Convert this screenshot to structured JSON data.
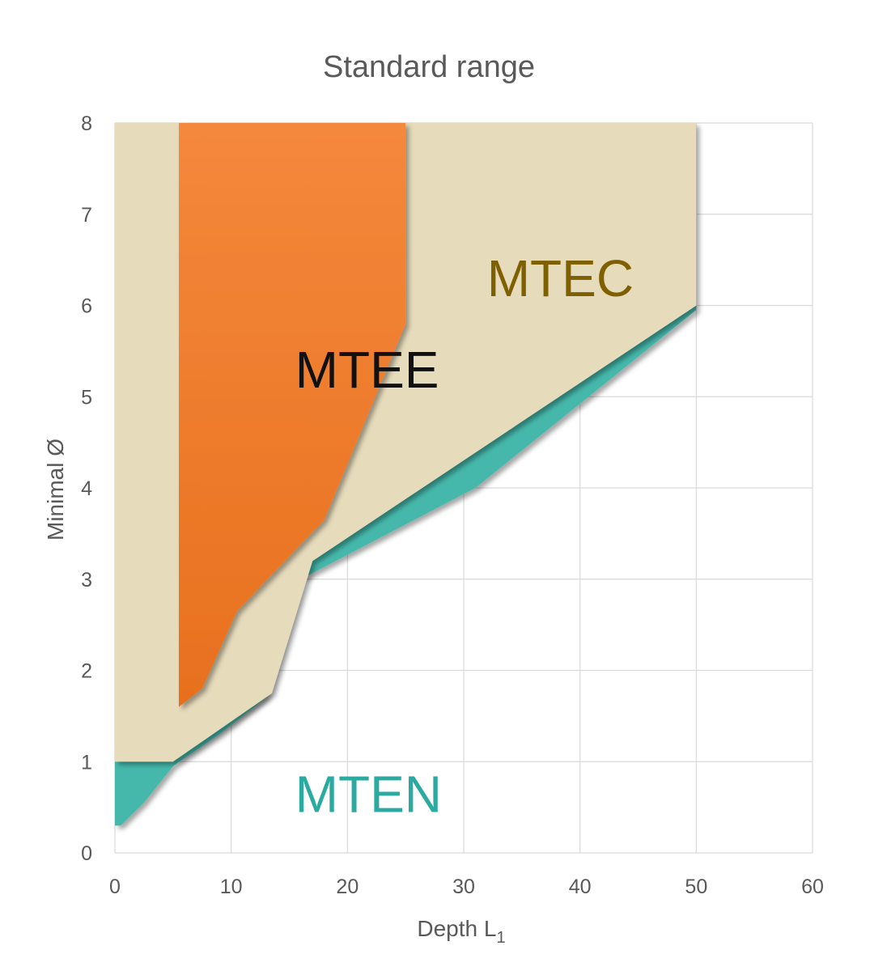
{
  "chart_data": {
    "type": "area",
    "title": "Standard range",
    "xlabel": "Depth L",
    "xlabel_sub": "1",
    "ylabel": "Minimal Ø",
    "xlim": [
      0,
      60
    ],
    "ylim": [
      0,
      8
    ],
    "x_ticks": [
      0,
      10,
      20,
      30,
      40,
      50,
      60
    ],
    "y_ticks": [
      0,
      1,
      2,
      3,
      4,
      5,
      6,
      7,
      8
    ],
    "grid": true,
    "series": [
      {
        "name": "MTEN",
        "color": "#45b8ab",
        "label": {
          "x": 15.5,
          "y": 0.45
        },
        "polygon": [
          [
            0,
            1
          ],
          [
            0,
            0.3
          ],
          [
            0.5,
            0.3
          ],
          [
            2.5,
            0.55
          ],
          [
            5,
            0.95
          ],
          [
            9,
            1.3
          ],
          [
            13,
            1.7
          ],
          [
            16,
            3.0
          ],
          [
            31,
            4.0
          ],
          [
            50,
            5.95
          ],
          [
            50,
            6
          ],
          [
            17,
            3.2
          ],
          [
            5,
            1
          ]
        ]
      },
      {
        "name": "MTEC",
        "color": "#e6dbbb",
        "label": {
          "x": 32,
          "y": 6.1
        },
        "polygon": [
          [
            0,
            8
          ],
          [
            50,
            8
          ],
          [
            50,
            6
          ],
          [
            17,
            3.2
          ],
          [
            13.5,
            1.75
          ],
          [
            5,
            1
          ],
          [
            0,
            1
          ]
        ]
      },
      {
        "name": "MTEE",
        "color": "#f07a2a",
        "label": {
          "x": 15.5,
          "y": 5.1
        },
        "polygon": [
          [
            5.5,
            8
          ],
          [
            25,
            8
          ],
          [
            25,
            5.8
          ],
          [
            18,
            3.65
          ],
          [
            10.5,
            2.65
          ],
          [
            7.5,
            1.8
          ],
          [
            5.5,
            1.6
          ]
        ]
      }
    ]
  }
}
